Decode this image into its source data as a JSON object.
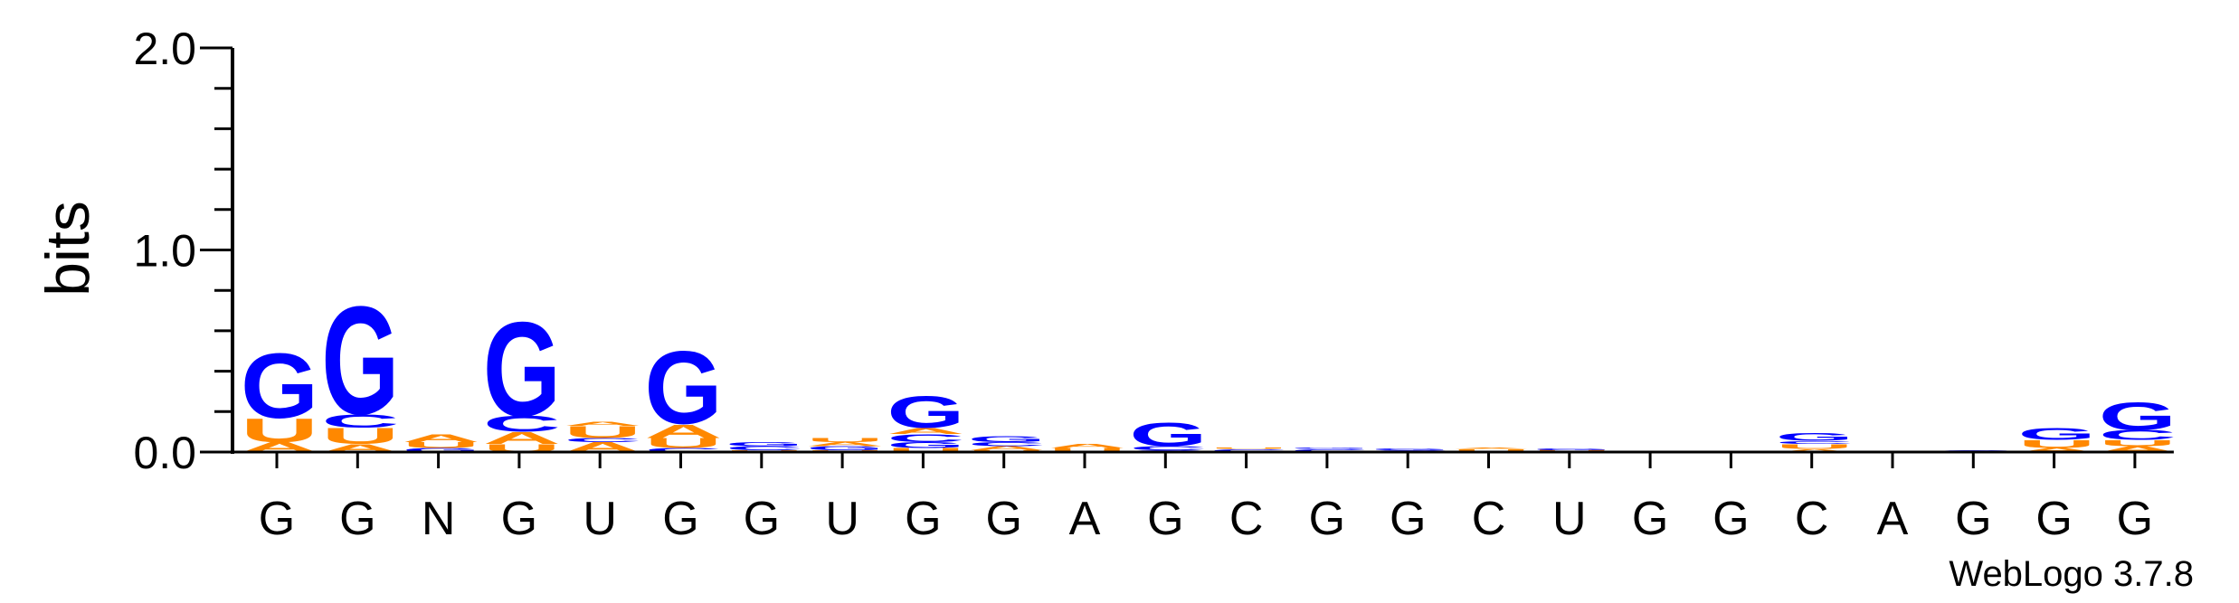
{
  "colors": {
    "G": "#0000ff",
    "C": "#0000ff",
    "U": "#ff8800",
    "A": "#ff8800",
    "axis": "#000000"
  },
  "credit": "WebLogo 3.7.8",
  "chart_data": {
    "type": "sequence-logo",
    "ylabel": "bits",
    "ylim": [
      0,
      2.0
    ],
    "yticks": [
      "0.0",
      "1.0",
      "2.0"
    ],
    "x": [
      "G",
      "G",
      "N",
      "G",
      "U",
      "G",
      "G",
      "U",
      "G",
      "G",
      "A",
      "G",
      "C",
      "G",
      "G",
      "C",
      "U",
      "G",
      "G",
      "C",
      "A",
      "G",
      "G",
      "G"
    ],
    "columns": [
      [
        [
          "A",
          0.05
        ],
        [
          "U",
          0.12
        ],
        [
          "G",
          0.33
        ]
      ],
      [
        [
          "A",
          0.04
        ],
        [
          "U",
          0.08
        ],
        [
          "C",
          0.07
        ],
        [
          "G",
          0.55
        ]
      ],
      [
        [
          "G",
          0.02
        ],
        [
          "U",
          0.03
        ],
        [
          "A",
          0.04
        ]
      ],
      [
        [
          "U",
          0.04
        ],
        [
          "A",
          0.06
        ],
        [
          "C",
          0.08
        ],
        [
          "G",
          0.48
        ]
      ],
      [
        [
          "A",
          0.05
        ],
        [
          "C",
          0.02
        ],
        [
          "U",
          0.06
        ],
        [
          "A",
          0.02
        ]
      ],
      [
        [
          "C",
          0.02
        ],
        [
          "U",
          0.05
        ],
        [
          "A",
          0.07
        ],
        [
          "G",
          0.37
        ]
      ],
      [
        [
          "U",
          0.01
        ],
        [
          "C",
          0.02
        ],
        [
          "G",
          0.02
        ]
      ],
      [
        [
          "U",
          0.01
        ],
        [
          "G",
          0.02
        ],
        [
          "A",
          0.02
        ],
        [
          "U",
          0.02
        ]
      ],
      [
        [
          "U",
          0.02
        ],
        [
          "G",
          0.03
        ],
        [
          "C",
          0.04
        ],
        [
          "A",
          0.03
        ],
        [
          "G",
          0.16
        ]
      ],
      [
        [
          "U",
          0.01
        ],
        [
          "A",
          0.02
        ],
        [
          "C",
          0.02
        ],
        [
          "G",
          0.03
        ]
      ],
      [
        [
          "U",
          0.02
        ],
        [
          "A",
          0.02
        ]
      ],
      [
        [
          "G",
          0.01
        ],
        [
          "C",
          0.02
        ],
        [
          "G",
          0.12
        ]
      ],
      [
        [
          "C",
          0.015
        ],
        [
          "U",
          0.005
        ]
      ],
      [
        [
          "C",
          0.015
        ],
        [
          "G",
          0.005
        ]
      ],
      [
        [
          "C",
          0.01
        ],
        [
          "G",
          0.01
        ]
      ],
      [
        [
          "C",
          0.005
        ],
        [
          "U",
          0.01
        ],
        [
          "A",
          0.005
        ]
      ],
      [
        [
          "C",
          0.005
        ],
        [
          "U",
          0.005
        ],
        [
          "G",
          0.01
        ]
      ],
      [
        [
          "G",
          0.005
        ]
      ],
      [
        [
          "G",
          0.002
        ]
      ],
      [
        [
          "A",
          0.015
        ],
        [
          "U",
          0.025
        ],
        [
          "C",
          0.015
        ],
        [
          "G",
          0.04
        ]
      ],
      [
        [
          "A",
          0.002
        ]
      ],
      [
        [
          "G",
          0.01
        ]
      ],
      [
        [
          "A",
          0.02
        ],
        [
          "U",
          0.04
        ],
        [
          "G",
          0.06
        ]
      ],
      [
        [
          "A",
          0.03
        ],
        [
          "U",
          0.03
        ],
        [
          "C",
          0.05
        ],
        [
          "G",
          0.14
        ]
      ]
    ]
  }
}
